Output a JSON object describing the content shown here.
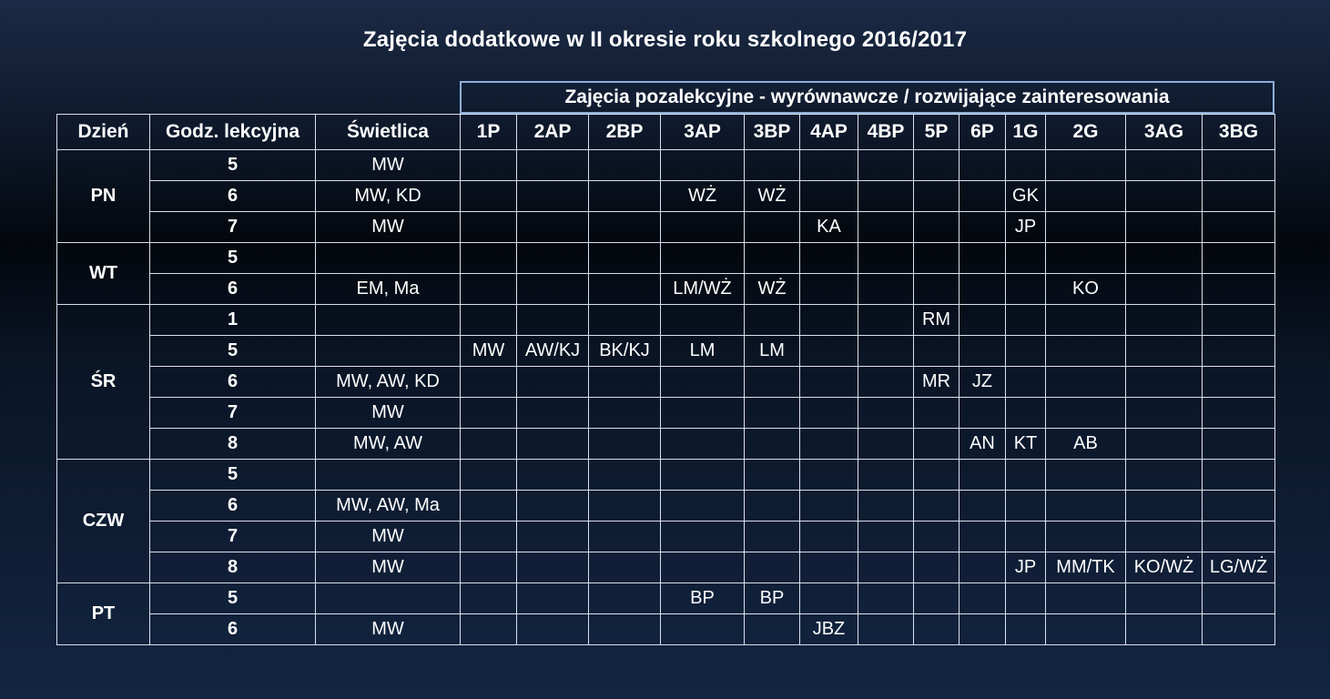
{
  "title": "Zajęcia dodatkowe w II okresie roku szkolnego 2016/2017",
  "group_header": "Zajęcia pozalekcyjne - wyrównawcze / rozwijające zainteresowania",
  "columns": [
    "Dzień",
    "Godz. lekcyjna",
    "Świetlica",
    "1P",
    "2AP",
    "2BP",
    "3AP",
    "3BP",
    "4AP",
    "4BP",
    "5P",
    "6P",
    "1G",
    "2G",
    "3AG",
    "3BG"
  ],
  "days": [
    {
      "day": "PN",
      "rows": [
        {
          "hour": "5",
          "swietlica": "MW",
          "cells": [
            "",
            "",
            "",
            "",
            "",
            "",
            "",
            "",
            "",
            "",
            "",
            "",
            ""
          ]
        },
        {
          "hour": "6",
          "swietlica": "MW, KD",
          "cells": [
            "",
            "",
            "",
            "WŻ",
            "WŻ",
            "",
            "",
            "",
            "",
            "GK",
            "",
            "",
            ""
          ]
        },
        {
          "hour": "7",
          "swietlica": "MW",
          "cells": [
            "",
            "",
            "",
            "",
            "",
            "KA",
            "",
            "",
            "",
            "JP",
            "",
            "",
            ""
          ]
        }
      ]
    },
    {
      "day": "WT",
      "rows": [
        {
          "hour": "5",
          "swietlica": "",
          "cells": [
            "",
            "",
            "",
            "",
            "",
            "",
            "",
            "",
            "",
            "",
            "",
            "",
            ""
          ]
        },
        {
          "hour": "6",
          "swietlica": "EM, Ma",
          "cells": [
            "",
            "",
            "",
            "LM/WŻ",
            "WŻ",
            "",
            "",
            "",
            "",
            "",
            "KO",
            "",
            ""
          ]
        }
      ]
    },
    {
      "day": "ŚR",
      "rows": [
        {
          "hour": "1",
          "swietlica": "",
          "cells": [
            "",
            "",
            "",
            "",
            "",
            "",
            "",
            "RM",
            "",
            "",
            "",
            "",
            ""
          ]
        },
        {
          "hour": "5",
          "swietlica": "",
          "cells": [
            "MW",
            "AW/KJ",
            "BK/KJ",
            "LM",
            "LM",
            "",
            "",
            "",
            "",
            "",
            "",
            "",
            ""
          ]
        },
        {
          "hour": "6",
          "swietlica": "MW, AW, KD",
          "cells": [
            "",
            "",
            "",
            "",
            "",
            "",
            "",
            "MR",
            "JZ",
            "",
            "",
            "",
            ""
          ]
        },
        {
          "hour": "7",
          "swietlica": "MW",
          "cells": [
            "",
            "",
            "",
            "",
            "",
            "",
            "",
            "",
            "",
            "",
            "",
            "",
            ""
          ]
        },
        {
          "hour": "8",
          "swietlica": "MW, AW",
          "cells": [
            "",
            "",
            "",
            "",
            "",
            "",
            "",
            "",
            "AN",
            "KT",
            "AB",
            "",
            ""
          ]
        }
      ]
    },
    {
      "day": "CZW",
      "rows": [
        {
          "hour": "5",
          "swietlica": "",
          "cells": [
            "",
            "",
            "",
            "",
            "",
            "",
            "",
            "",
            "",
            "",
            "",
            "",
            ""
          ]
        },
        {
          "hour": "6",
          "swietlica": "MW, AW, Ma",
          "cells": [
            "",
            "",
            "",
            "",
            "",
            "",
            "",
            "",
            "",
            "",
            "",
            "",
            ""
          ]
        },
        {
          "hour": "7",
          "swietlica": "MW",
          "cells": [
            "",
            "",
            "",
            "",
            "",
            "",
            "",
            "",
            "",
            "",
            "",
            "",
            ""
          ]
        },
        {
          "hour": "8",
          "swietlica": "MW",
          "cells": [
            "",
            "",
            "",
            "",
            "",
            "",
            "",
            "",
            "",
            "JP",
            "MM/TK",
            "KO/WŻ",
            "LG/WŻ"
          ]
        }
      ]
    },
    {
      "day": "PT",
      "rows": [
        {
          "hour": "5",
          "swietlica": "",
          "cells": [
            "",
            "",
            "",
            "BP",
            "BP",
            "",
            "",
            "",
            "",
            "",
            "",
            "",
            ""
          ]
        },
        {
          "hour": "6",
          "swietlica": "MW",
          "cells": [
            "",
            "",
            "",
            "",
            "",
            "JBZ",
            "",
            "",
            "",
            "",
            "",
            "",
            ""
          ]
        }
      ]
    }
  ]
}
